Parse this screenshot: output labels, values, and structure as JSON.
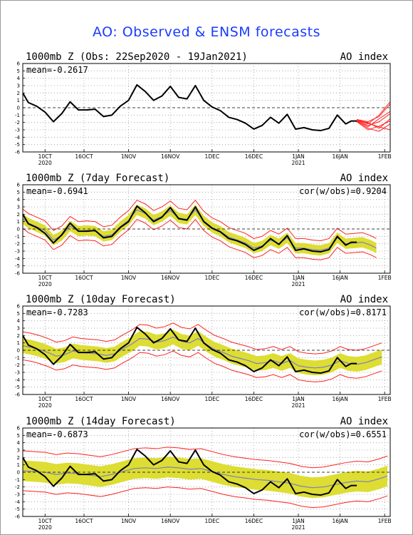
{
  "title": "AO: Observed & ENSM forecasts",
  "colors": {
    "obs": "#000000",
    "ens_mean": "#7f7fbf",
    "spread": "#dddd33",
    "bounds": "#ff2020",
    "title": "#1a3cff"
  },
  "x_ticks": [
    {
      "day": 8,
      "label": "10CT",
      "year": "2020"
    },
    {
      "day": 22,
      "label": "16OCT",
      "year": ""
    },
    {
      "day": 38,
      "label": "1NOV",
      "year": ""
    },
    {
      "day": 53,
      "label": "16NOV",
      "year": ""
    },
    {
      "day": 68,
      "label": "1DEC",
      "year": ""
    },
    {
      "day": 83,
      "label": "16DEC",
      "year": ""
    },
    {
      "day": 99,
      "label": "1JAN",
      "year": "2021"
    },
    {
      "day": 114,
      "label": "16JAN",
      "year": ""
    },
    {
      "day": 130,
      "label": "1FEB",
      "year": ""
    }
  ],
  "y_ticks": [
    "6",
    "5",
    "4",
    "3",
    "2",
    "1",
    "0",
    "-1",
    "-2",
    "-3",
    "-4",
    "-5",
    "-6"
  ],
  "chart_data": [
    {
      "type": "line",
      "title": "1000mb Z (Obs: 22Sep2020 - 19Jan2021)",
      "right_label": "AO index",
      "mean_label": "mean=-0.2617",
      "cor_label": "",
      "xlim": [
        0,
        132
      ],
      "ylim": [
        -6,
        6
      ],
      "obs": {
        "x": [
          0,
          2,
          5,
          8,
          11,
          14,
          17,
          20,
          23,
          26,
          29,
          32,
          35,
          38,
          41,
          44,
          47,
          50,
          53,
          56,
          59,
          62,
          65,
          68,
          71,
          74,
          77,
          80,
          83,
          86,
          89,
          92,
          95,
          98,
          101,
          104,
          107,
          110,
          113,
          116,
          118,
          120
        ],
        "y": [
          2.0,
          0.7,
          0.2,
          -0.6,
          -1.9,
          -0.8,
          0.8,
          -0.3,
          -0.3,
          -0.2,
          -1.2,
          -1.0,
          0.2,
          1.0,
          3.1,
          2.2,
          1.0,
          1.6,
          2.9,
          1.4,
          1.2,
          3.0,
          1.0,
          0.1,
          -0.4,
          -1.3,
          -1.6,
          -2.1,
          -2.9,
          -2.4,
          -1.3,
          -2.1,
          -0.9,
          -2.9,
          -2.7,
          -3.0,
          -3.1,
          -2.8,
          -1.0,
          -2.2,
          -1.8,
          -1.8
        ]
      },
      "forecast_plume": [
        {
          "x": [
            120,
            124,
            128,
            132
          ],
          "y": [
            -1.6,
            -1.9,
            -1.2,
            0.5
          ]
        },
        {
          "x": [
            120,
            124,
            128,
            132
          ],
          "y": [
            -1.7,
            -2.6,
            -1.5,
            -0.5
          ]
        },
        {
          "x": [
            120,
            124,
            128,
            132
          ],
          "y": [
            -1.8,
            -2.0,
            -2.8,
            -1.5
          ]
        },
        {
          "x": [
            120,
            124,
            128,
            132
          ],
          "y": [
            -1.8,
            -2.8,
            -3.2,
            -2.2
          ]
        },
        {
          "x": [
            120,
            124,
            128,
            132
          ],
          "y": [
            -1.7,
            -2.2,
            -1.0,
            0.8
          ]
        },
        {
          "x": [
            120,
            124,
            128,
            132
          ],
          "y": [
            -1.9,
            -3.0,
            -2.5,
            -1.8
          ]
        },
        {
          "x": [
            120,
            124,
            128,
            132
          ],
          "y": [
            -1.8,
            -2.4,
            -1.9,
            -0.8
          ]
        },
        {
          "x": [
            120,
            124,
            128,
            132
          ],
          "y": [
            -1.6,
            -2.1,
            -2.6,
            -3.0
          ]
        }
      ]
    },
    {
      "type": "line",
      "title": "1000mb Z (7day Forecast)",
      "right_label": "AO index",
      "mean_label": "mean=-0.6941",
      "cor_label": "cor(w/obs)=0.9204",
      "xlim": [
        0,
        132
      ],
      "ylim": [
        -6,
        6
      ],
      "obs": {
        "x": [
          0,
          2,
          5,
          8,
          11,
          14,
          17,
          20,
          23,
          26,
          29,
          32,
          35,
          38,
          41,
          44,
          47,
          50,
          53,
          56,
          59,
          62,
          65,
          68,
          71,
          74,
          77,
          80,
          83,
          86,
          89,
          92,
          95,
          98,
          101,
          104,
          107,
          110,
          113,
          116,
          118,
          120
        ],
        "y": [
          2.0,
          0.7,
          0.2,
          -0.6,
          -1.9,
          -0.8,
          0.8,
          -0.3,
          -0.3,
          -0.2,
          -1.2,
          -1.0,
          0.2,
          1.0,
          3.1,
          2.2,
          1.0,
          1.6,
          2.9,
          1.4,
          1.2,
          3.0,
          1.0,
          0.1,
          -0.4,
          -1.3,
          -1.6,
          -2.1,
          -2.9,
          -2.4,
          -1.3,
          -2.1,
          -0.9,
          -2.9,
          -2.7,
          -3.0,
          -3.1,
          -2.8,
          -1.0,
          -2.2,
          -1.8,
          -1.8
        ]
      },
      "forecast": {
        "x": [
          0,
          2,
          5,
          8,
          11,
          14,
          17,
          20,
          23,
          26,
          29,
          32,
          35,
          38,
          41,
          44,
          47,
          50,
          53,
          56,
          59,
          62,
          65,
          68,
          71,
          74,
          77,
          80,
          83,
          86,
          89,
          92,
          95,
          98,
          101,
          104,
          107,
          110,
          113,
          116,
          119,
          122,
          125,
          127
        ],
        "mean": [
          1.4,
          0.8,
          0.3,
          -0.2,
          -1.5,
          -0.9,
          0.4,
          -0.3,
          -0.2,
          -0.3,
          -1.0,
          -0.8,
          0.3,
          1.2,
          2.6,
          2.1,
          1.2,
          1.7,
          2.5,
          1.5,
          1.3,
          2.6,
          1.1,
          0.2,
          -0.3,
          -1.1,
          -1.5,
          -1.9,
          -2.6,
          -2.3,
          -1.5,
          -2.0,
          -1.2,
          -2.6,
          -2.6,
          -2.8,
          -2.9,
          -2.6,
          -1.2,
          -2.0,
          -1.9,
          -1.8,
          -2.2,
          -2.6
        ],
        "spread": 0.7,
        "bound": 1.3
      }
    },
    {
      "type": "line",
      "title": "1000mb Z (10day Forecast)",
      "right_label": "AO index",
      "mean_label": "mean=-0.7283",
      "cor_label": "cor(w/obs)=0.8171",
      "xlim": [
        0,
        132
      ],
      "ylim": [
        -6,
        6
      ],
      "obs": {
        "x": [
          0,
          2,
          5,
          8,
          11,
          14,
          17,
          20,
          23,
          26,
          29,
          32,
          35,
          38,
          41,
          44,
          47,
          50,
          53,
          56,
          59,
          62,
          65,
          68,
          71,
          74,
          77,
          80,
          83,
          86,
          89,
          92,
          95,
          98,
          101,
          104,
          107,
          110,
          113,
          116,
          118,
          120
        ],
        "y": [
          2.0,
          0.7,
          0.2,
          -0.6,
          -1.9,
          -0.8,
          0.8,
          -0.3,
          -0.3,
          -0.2,
          -1.2,
          -1.0,
          0.2,
          1.0,
          3.1,
          2.2,
          1.0,
          1.6,
          2.9,
          1.4,
          1.2,
          3.0,
          1.0,
          0.1,
          -0.4,
          -1.3,
          -1.6,
          -2.1,
          -2.9,
          -2.4,
          -1.3,
          -2.1,
          -0.9,
          -2.9,
          -2.7,
          -3.0,
          -3.1,
          -2.8,
          -1.0,
          -2.2,
          -1.8,
          -1.8
        ]
      },
      "forecast": {
        "x": [
          0,
          3,
          6,
          9,
          12,
          15,
          18,
          21,
          24,
          27,
          30,
          33,
          36,
          39,
          42,
          45,
          48,
          51,
          54,
          57,
          60,
          63,
          66,
          69,
          72,
          75,
          78,
          81,
          84,
          87,
          90,
          93,
          96,
          99,
          102,
          105,
          108,
          111,
          114,
          117,
          120,
          123,
          126,
          129
        ],
        "mean": [
          0.6,
          0.4,
          0.1,
          -0.3,
          -0.8,
          -0.6,
          -0.1,
          -0.3,
          -0.4,
          -0.5,
          -0.7,
          -0.5,
          0.2,
          0.8,
          1.6,
          1.5,
          1.1,
          1.3,
          1.8,
          1.2,
          1.0,
          1.6,
          0.8,
          0.1,
          -0.3,
          -0.8,
          -1.1,
          -1.4,
          -1.8,
          -1.7,
          -1.4,
          -1.8,
          -1.4,
          -2.1,
          -2.3,
          -2.4,
          -2.3,
          -2.0,
          -1.4,
          -1.8,
          -1.9,
          -1.7,
          -1.3,
          -0.9
        ],
        "spread": 1.0,
        "bound": 1.9
      }
    },
    {
      "type": "line",
      "title": "1000mb Z (14day Forecast)",
      "right_label": "AO index",
      "mean_label": "mean=-0.6873",
      "cor_label": "cor(w/obs)=0.6551",
      "xlim": [
        0,
        132
      ],
      "ylim": [
        -6,
        6
      ],
      "obs": {
        "x": [
          0,
          2,
          5,
          8,
          11,
          14,
          17,
          20,
          23,
          26,
          29,
          32,
          35,
          38,
          41,
          44,
          47,
          50,
          53,
          56,
          59,
          62,
          65,
          68,
          71,
          74,
          77,
          80,
          83,
          86,
          89,
          92,
          95,
          98,
          101,
          104,
          107,
          110,
          113,
          116,
          118,
          120
        ],
        "y": [
          2.0,
          0.7,
          0.2,
          -0.6,
          -1.9,
          -0.8,
          0.8,
          -0.3,
          -0.3,
          -0.2,
          -1.2,
          -1.0,
          0.2,
          1.0,
          3.1,
          2.2,
          1.0,
          1.6,
          2.9,
          1.4,
          1.2,
          3.0,
          1.0,
          0.1,
          -0.4,
          -1.3,
          -1.6,
          -2.1,
          -2.9,
          -2.4,
          -1.3,
          -2.1,
          -0.9,
          -2.9,
          -2.7,
          -3.0,
          -3.1,
          -2.8,
          -1.0,
          -2.2,
          -1.8,
          -1.8
        ]
      },
      "forecast": {
        "x": [
          0,
          4,
          8,
          12,
          16,
          20,
          24,
          28,
          32,
          36,
          40,
          44,
          48,
          52,
          56,
          60,
          64,
          68,
          72,
          76,
          80,
          84,
          88,
          92,
          96,
          100,
          104,
          108,
          112,
          116,
          120,
          124,
          128,
          131
        ],
        "mean": [
          0.2,
          0.1,
          0.0,
          -0.3,
          -0.1,
          -0.2,
          -0.4,
          -0.6,
          -0.3,
          0.1,
          0.5,
          0.6,
          0.5,
          0.7,
          0.6,
          0.4,
          0.5,
          0.1,
          -0.3,
          -0.6,
          -0.8,
          -1.0,
          -1.1,
          -1.3,
          -1.5,
          -1.9,
          -2.1,
          -2.0,
          -1.7,
          -1.4,
          -1.2,
          -1.3,
          -0.9,
          -0.5
        ],
        "spread": 1.4,
        "bound": 2.7
      }
    }
  ]
}
